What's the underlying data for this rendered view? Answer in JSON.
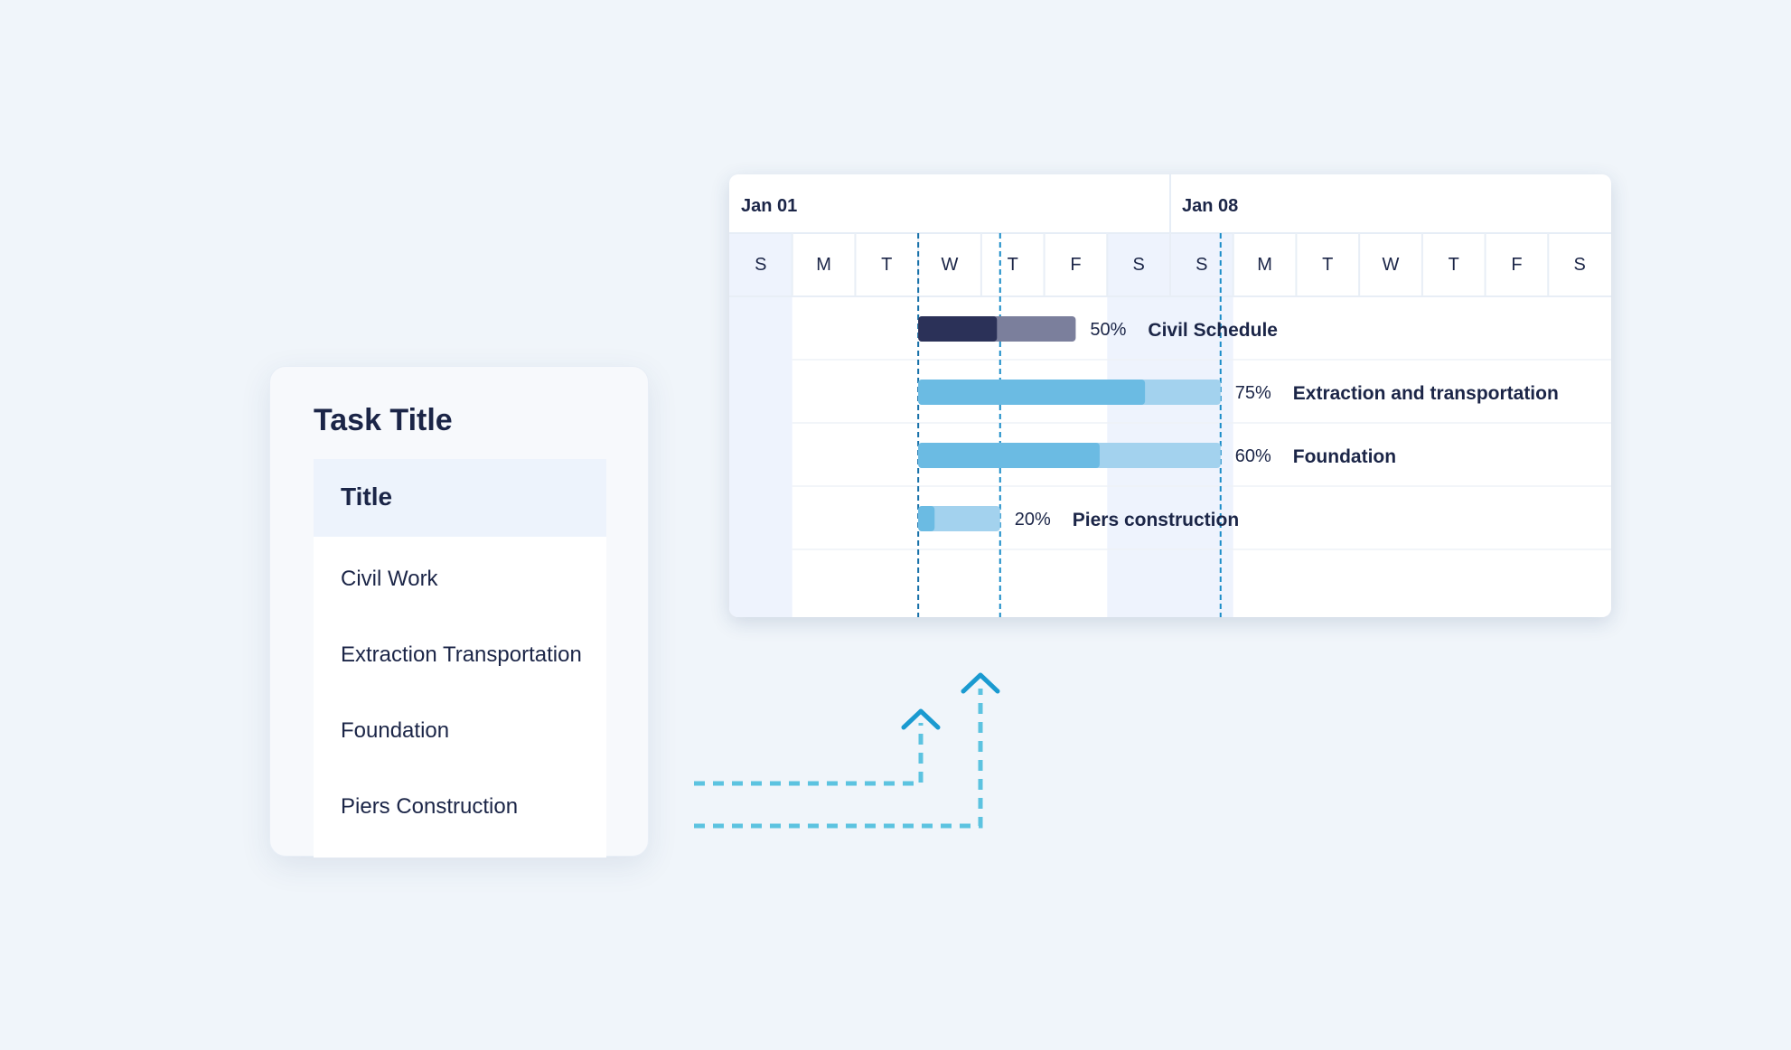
{
  "task_panel": {
    "title": "Task Title",
    "column_header": "Title",
    "rows": [
      "Civil Work",
      "Extraction Transportation",
      "Foundation",
      "Piers Construction"
    ]
  },
  "gantt": {
    "weeks": [
      "Jan 01",
      "Jan 08"
    ],
    "days": [
      "S",
      "M",
      "T",
      "W",
      "T",
      "F",
      "S",
      "S",
      "M",
      "T",
      "W",
      "T",
      "F",
      "S"
    ],
    "weekend_highlight_days": [
      0,
      6,
      7
    ],
    "tasks": [
      {
        "name": "Civil Schedule",
        "progress_label": "50%",
        "progress": 0.5,
        "start_day": 3,
        "duration_days": 2.5,
        "bar_color": "#7b7f9c",
        "fill_color": "#2b3158"
      },
      {
        "name": "Extraction and transportation",
        "progress_label": "75%",
        "progress": 0.75,
        "start_day": 3,
        "duration_days": 4.8,
        "bar_color": "#a3d2ee",
        "fill_color": "#6bbbe3"
      },
      {
        "name": "Foundation",
        "progress_label": "60%",
        "progress": 0.6,
        "start_day": 3,
        "duration_days": 4.8,
        "bar_color": "#a3d2ee",
        "fill_color": "#6bbbe3"
      },
      {
        "name": "Piers construction",
        "progress_label": "20%",
        "progress": 0.2,
        "start_day": 3,
        "duration_days": 1.3,
        "bar_color": "#a3d2ee",
        "fill_color": "#6bbbe3"
      }
    ]
  },
  "colors": {
    "text_dark": "#1b2547",
    "accent_dashed": "#1a8cc8",
    "connector": "#5cc3e0"
  },
  "icons": [
    "dependency-arrow-up-icon"
  ]
}
